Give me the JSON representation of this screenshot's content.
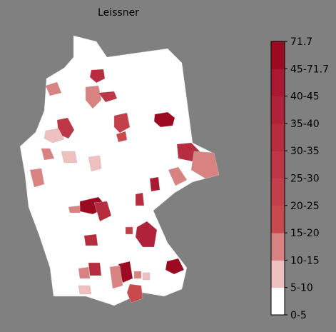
{
  "title": "Leissner",
  "colorbar": {
    "labels": [
      "0-5",
      "5-10",
      "10-15",
      "15-20",
      "20-25",
      "25-30",
      "30-35",
      "35-40",
      "40-45",
      "45-71.7",
      "71.7"
    ],
    "colors": [
      "#ffffff",
      "#eec0c0",
      "#d98282",
      "#c94a4d",
      "#c3404a",
      "#bd3645",
      "#b72c3f",
      "#b0223a",
      "#aa1834",
      "#9b0a20"
    ]
  }
}
